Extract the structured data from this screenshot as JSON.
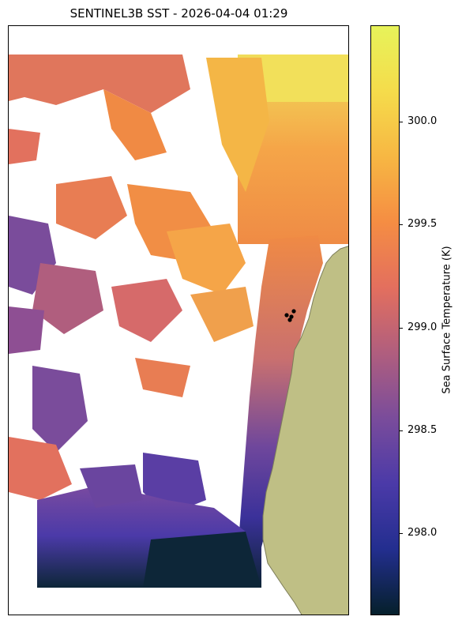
{
  "title": "SENTINEL3B SST - 2026-04-04 01:29",
  "colorbar": {
    "label": "Sea Surface Temperature (K)",
    "range": [
      297.6,
      300.47
    ],
    "ticks": [
      {
        "value": 298.0,
        "label": "298.0"
      },
      {
        "value": 298.5,
        "label": "298.5"
      },
      {
        "value": 299.0,
        "label": "299.0"
      },
      {
        "value": 299.5,
        "label": "299.5"
      },
      {
        "value": 300.0,
        "label": "300.0"
      }
    ],
    "colormap": [
      "#05202b",
      "#232e8f",
      "#4b3aa8",
      "#7a4c9b",
      "#b05e7e",
      "#e36f5e",
      "#f58d43",
      "#f7b743",
      "#f5dc4b",
      "#e7f35a"
    ]
  },
  "colors": {
    "land": "#bfbf85",
    "coast": "#7d7d5a",
    "no_data": "#ffffff",
    "points": "#000000"
  }
}
